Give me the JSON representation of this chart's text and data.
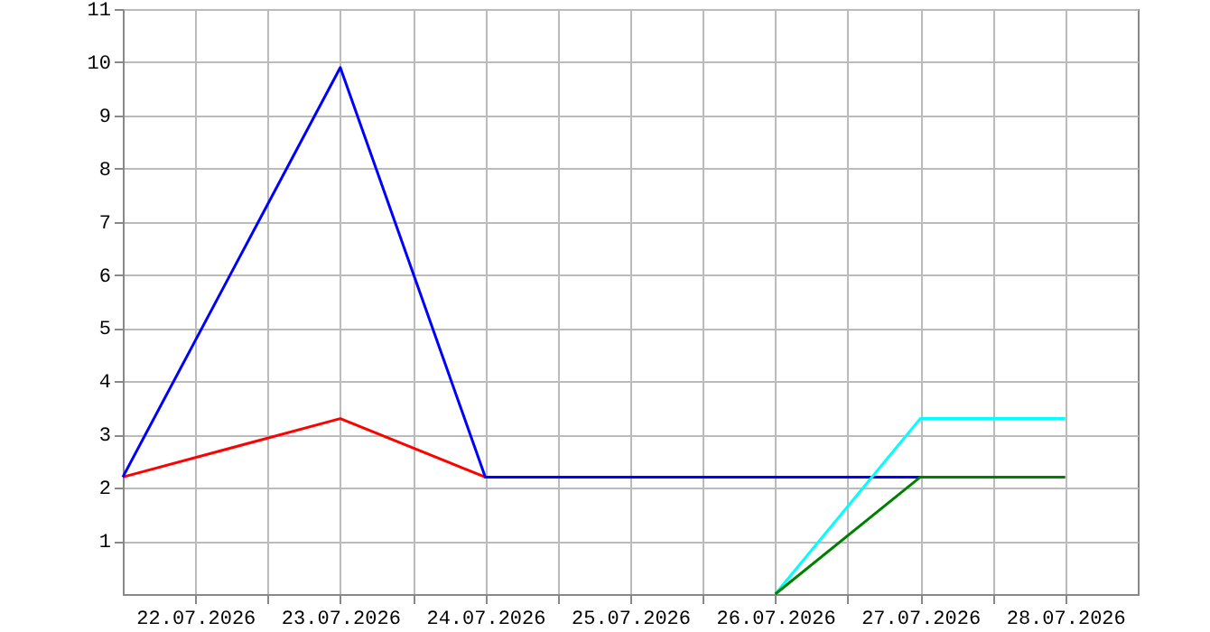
{
  "chart_data": {
    "type": "line",
    "xlim": [
      "2026-07-21T12:00",
      "2026-07-28T12:00"
    ],
    "xticks": [
      {
        "value": "2026-07-22",
        "label": "22.07.2026"
      },
      {
        "value": "2026-07-23",
        "label": "23.07.2026"
      },
      {
        "value": "2026-07-24",
        "label": "24.07.2026"
      },
      {
        "value": "2026-07-25",
        "label": "25.07.2026"
      },
      {
        "value": "2026-07-26",
        "label": "26.07.2026"
      },
      {
        "value": "2026-07-27",
        "label": "27.07.2026"
      },
      {
        "value": "2026-07-28",
        "label": "28.07.2026"
      },
      {
        "value": "2026-07-22T12:00",
        "label": null
      },
      {
        "value": "2026-07-23T12:00",
        "label": null
      },
      {
        "value": "2026-07-24T12:00",
        "label": null
      },
      {
        "value": "2026-07-25T12:00",
        "label": null
      },
      {
        "value": "2026-07-26T12:00",
        "label": null
      },
      {
        "value": "2026-07-27T12:00",
        "label": null
      }
    ],
    "ylim": [
      0,
      11
    ],
    "yticks": [
      1,
      2,
      3,
      4,
      5,
      6,
      7,
      8,
      9,
      10,
      11
    ],
    "grid": true,
    "line_style": "solid",
    "marker": "none",
    "series": [
      {
        "color": "#ff0000",
        "x": [
          "2026-07-21T12:00",
          "2026-07-23",
          "2026-07-24"
        ],
        "values": [
          2.2,
          3.3,
          2.2
        ]
      },
      {
        "color": "#0000ff",
        "x": [
          "2026-07-21T12:00",
          "2026-07-23",
          "2026-07-24",
          "2026-07-27"
        ],
        "values": [
          2.2,
          9.9,
          2.2,
          2.2
        ]
      },
      {
        "color": "#00ffff",
        "x": [
          "2026-07-26",
          "2026-07-27",
          "2026-07-28"
        ],
        "values": [
          0,
          3.3,
          3.3
        ]
      },
      {
        "color": "#008000",
        "x": [
          "2026-07-26",
          "2026-07-27",
          "2026-07-28"
        ],
        "values": [
          0,
          2.2,
          2.2
        ]
      }
    ]
  }
}
